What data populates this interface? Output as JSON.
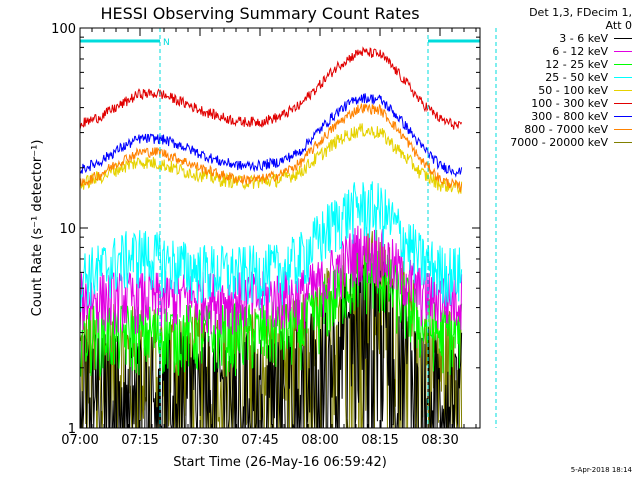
{
  "chart_data": {
    "type": "line",
    "title": "HESSI Observing Summary Count Rates",
    "xlabel": "Start Time (26-May-16 06:59:42)",
    "ylabel": "Count Rate (s⁻¹ detector⁻¹)",
    "y_scale": "log",
    "ylim": [
      1,
      100
    ],
    "xlim_minutes": [
      0,
      100
    ],
    "x_ticks": [
      "07:00",
      "07:15",
      "07:30",
      "07:45",
      "08:00",
      "08:15",
      "08:30"
    ],
    "y_ticks": [
      "1",
      "10",
      "100"
    ],
    "legend_header": [
      "Det 1,3, FDecim 1,",
      "Att 0"
    ],
    "series": [
      {
        "name": "3 - 6 keV",
        "color": "#000000",
        "x": [
          0,
          15,
          30,
          45,
          55,
          60,
          65,
          70,
          75,
          80,
          85,
          90,
          95
        ],
        "y": [
          1.6,
          1.6,
          1.6,
          1.6,
          1.8,
          2.2,
          3.0,
          3.8,
          3.8,
          2.8,
          1.8,
          1.6,
          1.6
        ]
      },
      {
        "name": "6 - 12 keV",
        "color": "#e100e1",
        "x": [
          0,
          15,
          30,
          45,
          55,
          60,
          65,
          70,
          75,
          80,
          85,
          90,
          95
        ],
        "y": [
          4.5,
          4.5,
          4.5,
          4.5,
          4.6,
          5.2,
          6.5,
          8.0,
          7.5,
          6.0,
          4.8,
          4.5,
          4.5
        ]
      },
      {
        "name": "12 - 25 keV",
        "color": "#00ff00",
        "x": [
          0,
          15,
          30,
          45,
          55,
          60,
          65,
          70,
          75,
          80,
          85,
          90,
          95
        ],
        "y": [
          3.0,
          3.0,
          3.0,
          3.0,
          3.2,
          3.8,
          5.0,
          6.0,
          5.8,
          4.5,
          3.4,
          3.0,
          3.0
        ]
      },
      {
        "name": "25 - 50 keV",
        "color": "#00ffff",
        "x": [
          0,
          5,
          10,
          15,
          20,
          25,
          30,
          40,
          50,
          55,
          60,
          65,
          70,
          75,
          80,
          85,
          90,
          95
        ],
        "y": [
          5.8,
          6.2,
          7.0,
          7.5,
          7.0,
          6.5,
          6.2,
          6.0,
          6.2,
          7.0,
          9.0,
          11.5,
          13.0,
          12.5,
          9.5,
          7.0,
          6.2,
          6.0
        ]
      },
      {
        "name": "50 - 100 keV",
        "color": "#e6d200",
        "x": [
          0,
          5,
          10,
          15,
          20,
          25,
          30,
          35,
          40,
          45,
          50,
          55,
          60,
          65,
          70,
          75,
          80,
          85,
          90,
          95
        ],
        "y": [
          16.5,
          18,
          20,
          21.5,
          21,
          19.5,
          18.5,
          17.5,
          17,
          17,
          17.5,
          19,
          23,
          28,
          31,
          30,
          24,
          19,
          16.5,
          16
        ]
      },
      {
        "name": "100 - 300 keV",
        "color": "#e10000",
        "x": [
          0,
          5,
          10,
          15,
          20,
          25,
          30,
          35,
          40,
          45,
          50,
          55,
          60,
          65,
          70,
          75,
          80,
          85,
          90,
          95
        ],
        "y": [
          33,
          36,
          41,
          47,
          47,
          43,
          39,
          36,
          34,
          34,
          36,
          41,
          52,
          66,
          76,
          74,
          58,
          43,
          35,
          32
        ]
      },
      {
        "name": "300 - 800 keV",
        "color": "#0000ff",
        "x": [
          0,
          5,
          10,
          15,
          20,
          25,
          30,
          35,
          40,
          45,
          50,
          55,
          60,
          65,
          70,
          75,
          80,
          85,
          90,
          95
        ],
        "y": [
          19.5,
          21.5,
          25,
          28,
          28,
          26,
          23.5,
          21.5,
          20.5,
          20.5,
          21.5,
          24,
          31,
          39,
          45,
          44,
          35,
          26,
          20.5,
          19
        ]
      },
      {
        "name": "800 - 7000 keV",
        "color": "#ff8200",
        "x": [
          0,
          5,
          10,
          15,
          20,
          25,
          30,
          35,
          40,
          45,
          50,
          55,
          60,
          65,
          70,
          75,
          80,
          85,
          90,
          95
        ],
        "y": [
          16.5,
          18.5,
          21.5,
          24,
          24,
          22,
          20,
          18.5,
          17.5,
          17.5,
          18.5,
          21,
          27,
          34,
          40,
          39,
          30,
          22,
          17.5,
          16
        ]
      },
      {
        "name": "7000 - 20000 keV",
        "color": "#808000",
        "x": [
          0,
          15,
          30,
          45,
          55,
          60,
          65,
          70,
          75,
          80,
          85,
          90,
          95
        ],
        "y": [
          2.2,
          2.2,
          2.2,
          2.2,
          2.4,
          3.0,
          4.2,
          5.5,
          5.2,
          3.8,
          2.6,
          2.2,
          2.2
        ]
      }
    ],
    "observing_flags": {
      "color": "#00dcdc",
      "label": "N",
      "segments_minutes": [
        [
          0,
          20
        ],
        [
          87,
          104
        ]
      ],
      "boundaries_minutes": [
        20,
        87,
        104
      ]
    },
    "footer": "5-Apr-2018 18:14"
  }
}
